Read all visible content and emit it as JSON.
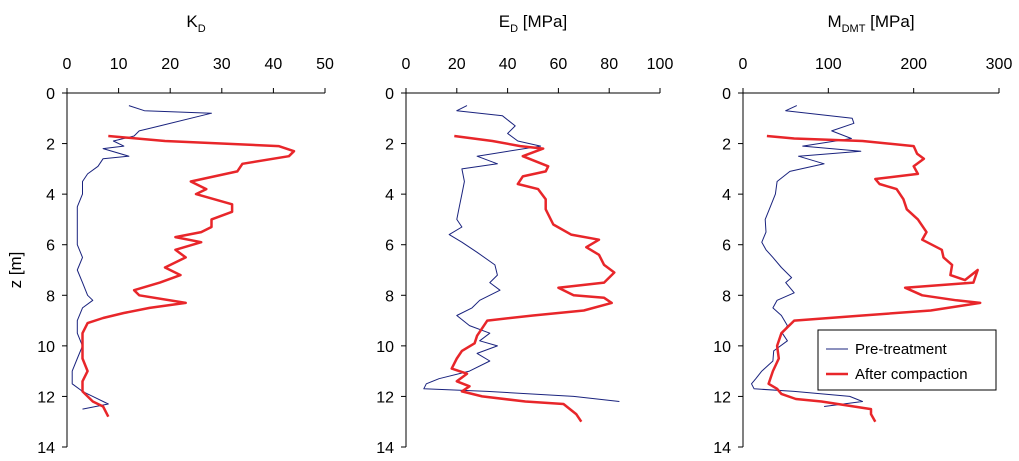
{
  "y_axis": {
    "label": "z [m]",
    "range": [
      0,
      14
    ],
    "ticks": [
      0,
      2,
      4,
      6,
      8,
      10,
      12,
      14
    ],
    "reversed": true
  },
  "legend": {
    "placement": "bottom-right of third panel",
    "entries": [
      {
        "name": "Pre-treatment",
        "color": "#1a237e"
      },
      {
        "name": "After compaction",
        "color": "#e8262a"
      }
    ]
  },
  "panels": [
    {
      "title_main": "K",
      "title_sub": "D",
      "title_tail": "",
      "xlim": [
        0,
        50
      ],
      "xticks": [
        0,
        10,
        20,
        30,
        40,
        50
      ]
    },
    {
      "title_main": "E",
      "title_sub": "D",
      "title_tail": " [MPa]",
      "xlim": [
        0,
        100
      ],
      "xticks": [
        0,
        20,
        40,
        60,
        80,
        100
      ]
    },
    {
      "title_main": "M",
      "title_sub": "DMT",
      "title_tail": " [MPa]",
      "xlim": [
        0,
        300
      ],
      "xticks": [
        0,
        100,
        200,
        300
      ]
    }
  ],
  "chart_data": [
    {
      "type": "line",
      "title": "KD",
      "xlim": [
        0,
        50
      ],
      "ylim": [
        14,
        0
      ],
      "ylabel": "z [m]",
      "series": [
        {
          "name": "Pre-treatment",
          "color": "#1a237e",
          "points": [
            [
              12,
              0.5
            ],
            [
              15,
              0.7
            ],
            [
              28,
              0.8
            ],
            [
              18,
              1.3
            ],
            [
              14,
              1.5
            ],
            [
              13,
              1.7
            ],
            [
              9,
              1.9
            ],
            [
              11,
              2.1
            ],
            [
              7,
              2.2
            ],
            [
              12,
              2.5
            ],
            [
              7,
              2.6
            ],
            [
              6,
              2.9
            ],
            [
              4,
              3.2
            ],
            [
              3,
              3.5
            ],
            [
              3,
              4.0
            ],
            [
              2,
              4.5
            ],
            [
              2,
              5.0
            ],
            [
              2,
              5.5
            ],
            [
              2,
              6.0
            ],
            [
              3,
              6.5
            ],
            [
              2,
              7.0
            ],
            [
              3,
              7.5
            ],
            [
              4,
              8.0
            ],
            [
              5,
              8.2
            ],
            [
              3,
              8.5
            ],
            [
              2,
              9.0
            ],
            [
              2,
              9.5
            ],
            [
              3,
              10.0
            ],
            [
              2,
              10.5
            ],
            [
              1,
              11.0
            ],
            [
              1,
              11.5
            ],
            [
              3,
              11.8
            ],
            [
              5,
              12.0
            ],
            [
              8,
              12.3
            ],
            [
              3,
              12.5
            ]
          ]
        },
        {
          "name": "After compaction",
          "color": "#e8262a",
          "points": [
            [
              8,
              1.7
            ],
            [
              19,
              1.9
            ],
            [
              41,
              2.1
            ],
            [
              44,
              2.3
            ],
            [
              43,
              2.5
            ],
            [
              34,
              2.8
            ],
            [
              33,
              3.1
            ],
            [
              24,
              3.5
            ],
            [
              27,
              3.8
            ],
            [
              25,
              4.0
            ],
            [
              32,
              4.4
            ],
            [
              32,
              4.7
            ],
            [
              28,
              5.0
            ],
            [
              28,
              5.3
            ],
            [
              26,
              5.5
            ],
            [
              21,
              5.7
            ],
            [
              26,
              5.9
            ],
            [
              21,
              6.2
            ],
            [
              23,
              6.5
            ],
            [
              19,
              6.9
            ],
            [
              22,
              7.2
            ],
            [
              18,
              7.5
            ],
            [
              13,
              7.8
            ],
            [
              14,
              8.0
            ],
            [
              23,
              8.3
            ],
            [
              16,
              8.5
            ],
            [
              11,
              8.7
            ],
            [
              7,
              8.9
            ],
            [
              4,
              9.1
            ],
            [
              3,
              9.5
            ],
            [
              3,
              10.0
            ],
            [
              3,
              10.5
            ],
            [
              4,
              11.0
            ],
            [
              3,
              11.4
            ],
            [
              3,
              11.8
            ],
            [
              4,
              12.0
            ],
            [
              5,
              12.2
            ],
            [
              7,
              12.4
            ],
            [
              8,
              12.8
            ]
          ]
        }
      ]
    },
    {
      "type": "line",
      "title": "ED [MPa]",
      "xlim": [
        0,
        100
      ],
      "ylim": [
        14,
        0
      ],
      "series": [
        {
          "name": "Pre-treatment",
          "color": "#1a237e",
          "points": [
            [
              24,
              0.5
            ],
            [
              20,
              0.7
            ],
            [
              38,
              0.9
            ],
            [
              43,
              1.3
            ],
            [
              40,
              1.6
            ],
            [
              44,
              1.9
            ],
            [
              53,
              2.1
            ],
            [
              28,
              2.5
            ],
            [
              36,
              2.8
            ],
            [
              22,
              3.0
            ],
            [
              23,
              3.5
            ],
            [
              22,
              4.0
            ],
            [
              21,
              4.5
            ],
            [
              20,
              5.0
            ],
            [
              22,
              5.3
            ],
            [
              17,
              5.6
            ],
            [
              22,
              5.9
            ],
            [
              28,
              6.3
            ],
            [
              35,
              6.8
            ],
            [
              36,
              7.2
            ],
            [
              33,
              7.5
            ],
            [
              37,
              7.8
            ],
            [
              29,
              8.2
            ],
            [
              26,
              8.5
            ],
            [
              20,
              8.8
            ],
            [
              25,
              9.2
            ],
            [
              33,
              9.5
            ],
            [
              29,
              9.8
            ],
            [
              36,
              10.0
            ],
            [
              28,
              10.3
            ],
            [
              33,
              10.6
            ],
            [
              25,
              11.0
            ],
            [
              13,
              11.3
            ],
            [
              8,
              11.5
            ],
            [
              7,
              11.7
            ],
            [
              32,
              11.8
            ],
            [
              66,
              12.0
            ],
            [
              84,
              12.2
            ]
          ]
        },
        {
          "name": "After compaction",
          "color": "#e8262a",
          "points": [
            [
              19,
              1.7
            ],
            [
              34,
              1.9
            ],
            [
              45,
              2.1
            ],
            [
              54,
              2.2
            ],
            [
              46,
              2.5
            ],
            [
              56,
              2.9
            ],
            [
              55,
              3.1
            ],
            [
              46,
              3.3
            ],
            [
              44,
              3.6
            ],
            [
              52,
              3.8
            ],
            [
              55,
              4.2
            ],
            [
              55,
              4.6
            ],
            [
              58,
              5.2
            ],
            [
              65,
              5.6
            ],
            [
              76,
              5.8
            ],
            [
              71,
              6.1
            ],
            [
              76,
              6.4
            ],
            [
              78,
              6.8
            ],
            [
              82,
              7.1
            ],
            [
              78,
              7.5
            ],
            [
              60,
              7.7
            ],
            [
              66,
              8.0
            ],
            [
              78,
              8.1
            ],
            [
              81,
              8.3
            ],
            [
              70,
              8.6
            ],
            [
              50,
              8.8
            ],
            [
              32,
              9.0
            ],
            [
              30,
              9.3
            ],
            [
              28,
              9.6
            ],
            [
              27,
              9.9
            ],
            [
              22,
              10.2
            ],
            [
              20,
              10.5
            ],
            [
              18,
              10.9
            ],
            [
              24,
              11.1
            ],
            [
              20,
              11.4
            ],
            [
              25,
              11.6
            ],
            [
              22,
              11.8
            ],
            [
              30,
              12.0
            ],
            [
              47,
              12.2
            ],
            [
              62,
              12.3
            ],
            [
              67,
              12.7
            ],
            [
              69,
              13.0
            ]
          ]
        }
      ]
    },
    {
      "type": "line",
      "title": "MDMT [MPa]",
      "xlim": [
        0,
        300
      ],
      "ylim": [
        14,
        0
      ],
      "series": [
        {
          "name": "Pre-treatment",
          "color": "#1a237e",
          "points": [
            [
              63,
              0.5
            ],
            [
              50,
              0.7
            ],
            [
              128,
              1.0
            ],
            [
              130,
              1.2
            ],
            [
              104,
              1.5
            ],
            [
              127,
              1.8
            ],
            [
              70,
              2.1
            ],
            [
              138,
              2.3
            ],
            [
              65,
              2.5
            ],
            [
              95,
              2.8
            ],
            [
              55,
              3.1
            ],
            [
              40,
              3.5
            ],
            [
              38,
              4.0
            ],
            [
              32,
              4.5
            ],
            [
              26,
              5.0
            ],
            [
              27,
              5.5
            ],
            [
              22,
              5.9
            ],
            [
              27,
              6.2
            ],
            [
              35,
              6.5
            ],
            [
              45,
              6.9
            ],
            [
              57,
              7.3
            ],
            [
              50,
              7.5
            ],
            [
              60,
              7.9
            ],
            [
              40,
              8.2
            ],
            [
              35,
              8.5
            ],
            [
              45,
              8.8
            ],
            [
              52,
              9.2
            ],
            [
              46,
              9.5
            ],
            [
              52,
              9.8
            ],
            [
              36,
              10.2
            ],
            [
              35,
              10.6
            ],
            [
              22,
              11.0
            ],
            [
              15,
              11.3
            ],
            [
              10,
              11.5
            ],
            [
              13,
              11.7
            ],
            [
              60,
              11.8
            ],
            [
              125,
              12.0
            ],
            [
              140,
              12.2
            ],
            [
              95,
              12.4
            ]
          ]
        },
        {
          "name": "After compaction",
          "color": "#e8262a",
          "points": [
            [
              28,
              1.7
            ],
            [
              60,
              1.8
            ],
            [
              140,
              1.9
            ],
            [
              200,
              2.1
            ],
            [
              204,
              2.4
            ],
            [
              212,
              2.6
            ],
            [
              200,
              2.9
            ],
            [
              205,
              3.2
            ],
            [
              155,
              3.4
            ],
            [
              160,
              3.6
            ],
            [
              180,
              3.8
            ],
            [
              188,
              4.2
            ],
            [
              192,
              4.6
            ],
            [
              205,
              5.0
            ],
            [
              215,
              5.5
            ],
            [
              210,
              5.8
            ],
            [
              233,
              6.2
            ],
            [
              235,
              6.5
            ],
            [
              245,
              6.8
            ],
            [
              243,
              7.2
            ],
            [
              260,
              7.4
            ],
            [
              275,
              7.0
            ],
            [
              270,
              7.5
            ],
            [
              190,
              7.7
            ],
            [
              210,
              8.0
            ],
            [
              250,
              8.2
            ],
            [
              278,
              8.3
            ],
            [
              220,
              8.6
            ],
            [
              140,
              8.8
            ],
            [
              60,
              9.0
            ],
            [
              45,
              9.5
            ],
            [
              40,
              10.0
            ],
            [
              42,
              10.5
            ],
            [
              35,
              11.0
            ],
            [
              30,
              11.5
            ],
            [
              40,
              11.7
            ],
            [
              45,
              11.9
            ],
            [
              62,
              12.1
            ],
            [
              92,
              12.2
            ],
            [
              150,
              12.5
            ],
            [
              150,
              12.7
            ],
            [
              155,
              13.0
            ]
          ]
        }
      ]
    }
  ]
}
